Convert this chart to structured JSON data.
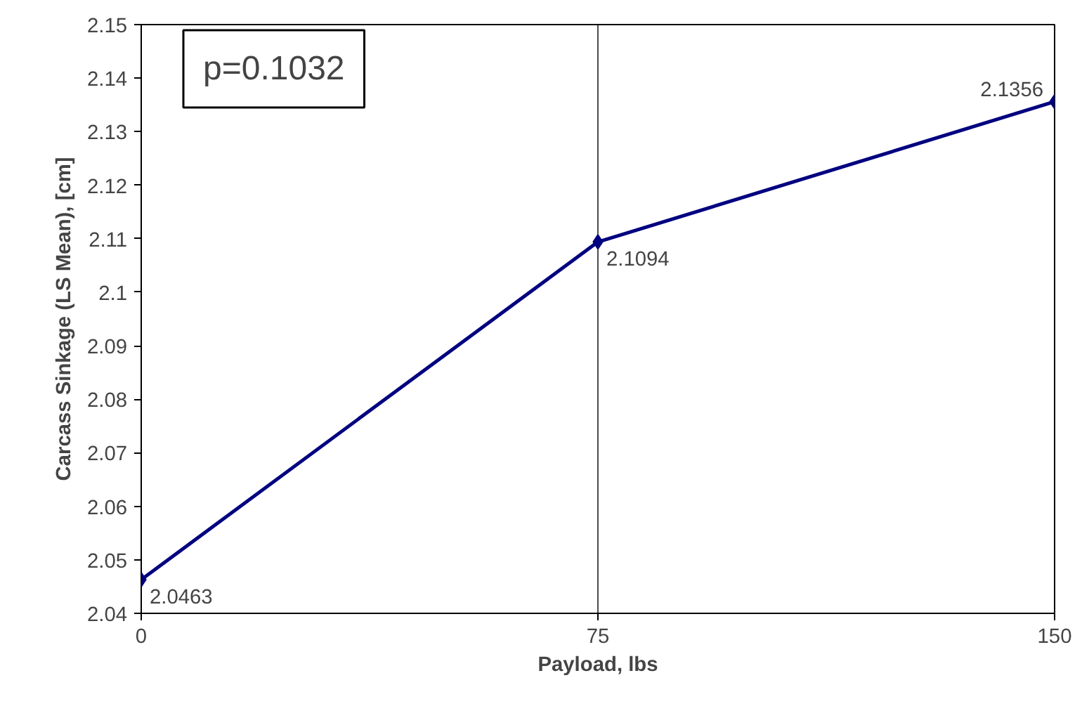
{
  "chart_data": {
    "type": "line",
    "xlabel": "Payload, lbs",
    "ylabel": "Carcass Sinkage (LS Mean), [cm]",
    "x": [
      0,
      75,
      150
    ],
    "series": [
      {
        "color": "#000080",
        "values": [
          2.0463,
          2.1094,
          2.1356
        ]
      }
    ],
    "xlim": [
      0,
      150
    ],
    "xticks": [
      0,
      75,
      150
    ],
    "ylim": [
      2.04,
      2.15
    ],
    "yticks": [
      2.04,
      2.05,
      2.06,
      2.07,
      2.08,
      2.09,
      2.1,
      2.11,
      2.12,
      2.13,
      2.14,
      2.15
    ],
    "grid": "x",
    "marker": "diamond",
    "line_style": "solid",
    "data_labels": true,
    "annotations": [
      "p=0.1032"
    ]
  }
}
